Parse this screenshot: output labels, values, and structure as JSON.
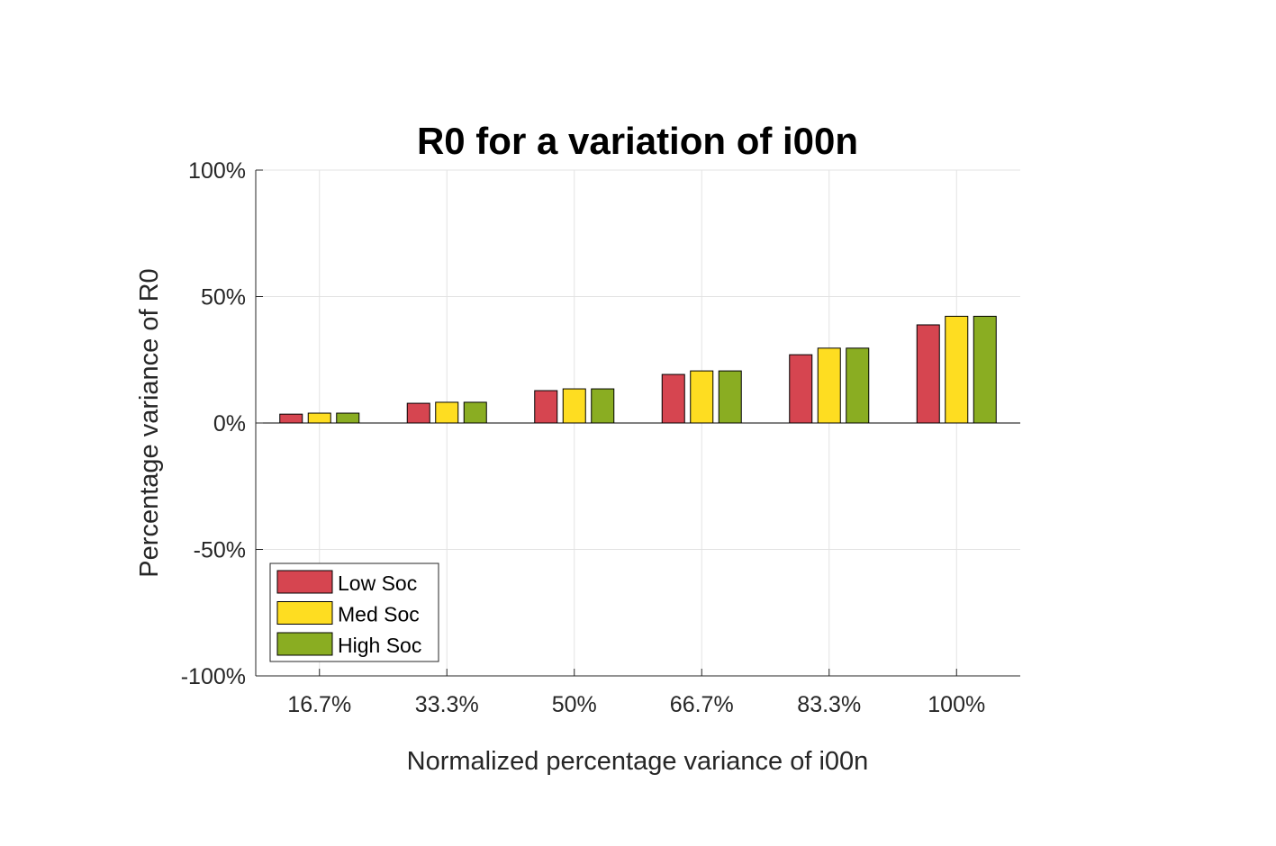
{
  "chart_data": {
    "type": "bar",
    "title": "R0 for a variation of i00n",
    "xlabel": "Normalized percentage variance of i00n",
    "ylabel": "Percentage variance of R0",
    "categories": [
      "16.7%",
      "33.3%",
      "50%",
      "66.7%",
      "83.3%",
      "100%"
    ],
    "yticks": [
      -100,
      -50,
      0,
      50,
      100
    ],
    "ytick_labels": [
      "-100%",
      "-50%",
      "0%",
      "50%",
      "100%"
    ],
    "ylim": [
      -100,
      100
    ],
    "grid": true,
    "legend_position": "bottom-left",
    "series": [
      {
        "name": "Low Soc",
        "color": "#d64550",
        "values": [
          3.5,
          7.8,
          12.8,
          19.2,
          27.0,
          38.8
        ]
      },
      {
        "name": "Med Soc",
        "color": "#fedd21",
        "values": [
          3.9,
          8.2,
          13.5,
          20.6,
          29.6,
          42.2
        ]
      },
      {
        "name": "High Soc",
        "color": "#8aad22",
        "values": [
          3.9,
          8.2,
          13.5,
          20.6,
          29.6,
          42.2
        ]
      }
    ]
  }
}
